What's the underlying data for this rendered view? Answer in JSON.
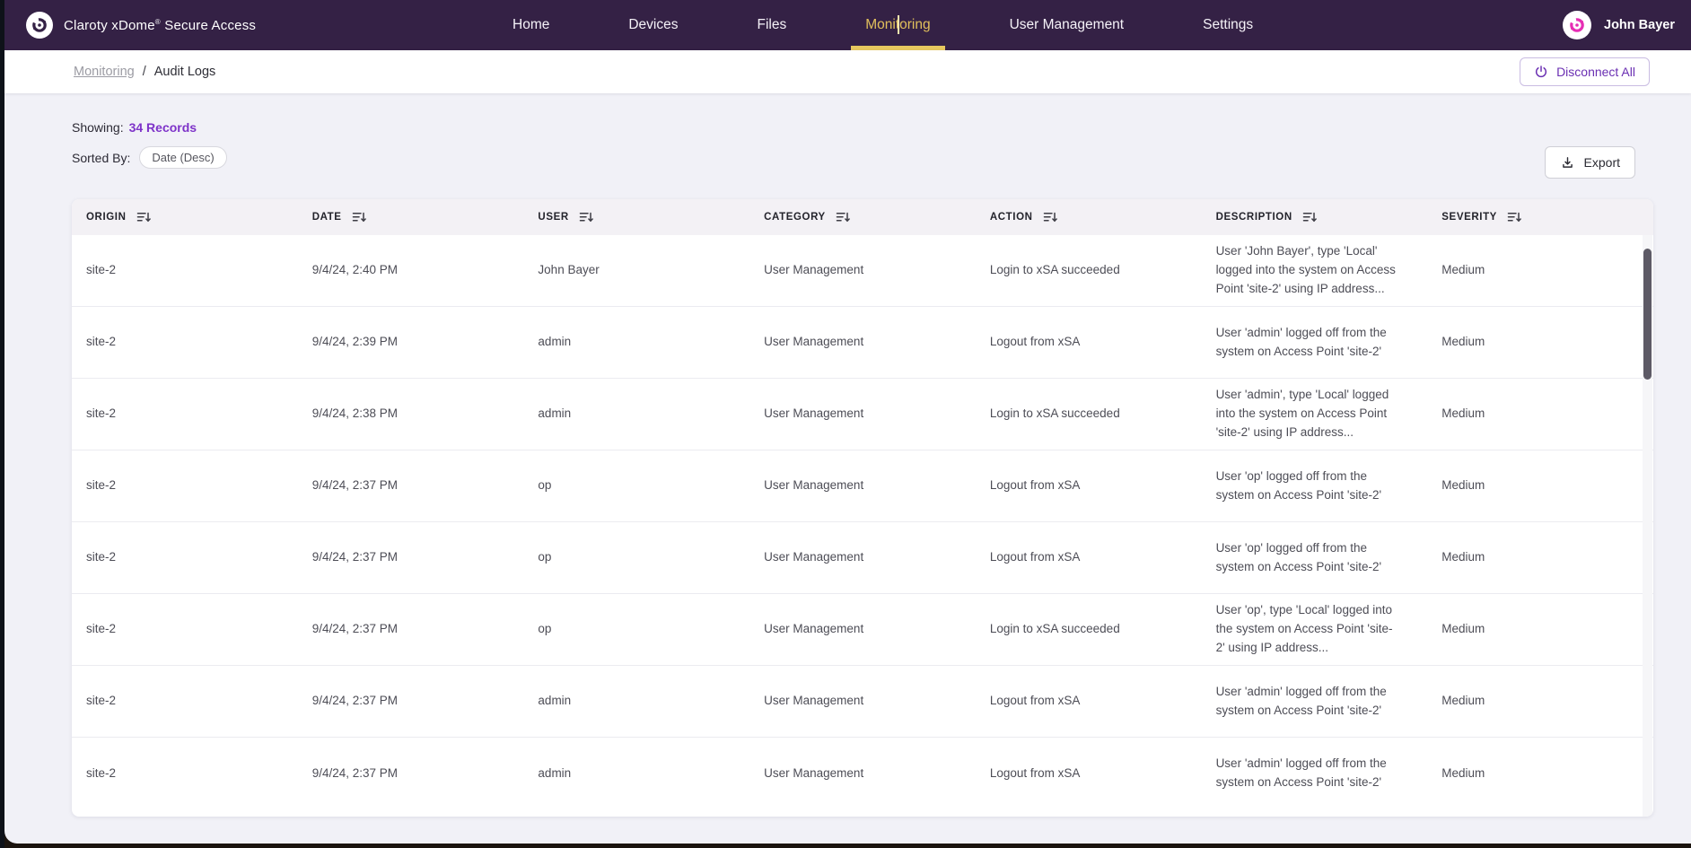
{
  "colors": {
    "nav_bg": "#342145",
    "active_gold": "#E2C05C",
    "accent_purple": "#7E33C9",
    "button_purple": "#6A2FB2"
  },
  "nav": {
    "brand_name": "Claroty xDome",
    "brand_reg": "®",
    "brand_suffix": " Secure Access",
    "items": [
      {
        "label": "Home",
        "active": false
      },
      {
        "label": "Devices",
        "active": false
      },
      {
        "label": "Files",
        "active": false
      },
      {
        "label": "Monitoring",
        "active": true
      },
      {
        "label": "User Management",
        "active": false
      },
      {
        "label": "Settings",
        "active": false
      }
    ],
    "user_name": "John Bayer"
  },
  "breadcrumb": {
    "parent": "Monitoring",
    "separator": "/",
    "current": "Audit Logs"
  },
  "actions": {
    "disconnect_all": "Disconnect All",
    "export": "Export"
  },
  "summary": {
    "showing_label": "Showing:",
    "records_count": "34 Records",
    "sorted_label": "Sorted By:",
    "sort_chip": "Date (Desc)"
  },
  "table": {
    "columns": [
      "ORIGIN",
      "DATE",
      "USER",
      "CATEGORY",
      "ACTION",
      "DESCRIPTION",
      "SEVERITY"
    ],
    "column_keys": [
      "origin",
      "date",
      "user",
      "category",
      "action",
      "description",
      "severity"
    ],
    "rows": [
      {
        "origin": "site-2",
        "date": "9/4/24, 2:40 PM",
        "user": "John Bayer",
        "category": "User Management",
        "action": "Login to xSA succeeded",
        "description": "User 'John Bayer', type 'Local' logged into the system on Access Point 'site-2' using IP address...",
        "severity": "Medium"
      },
      {
        "origin": "site-2",
        "date": "9/4/24, 2:39 PM",
        "user": "admin",
        "category": "User Management",
        "action": "Logout from xSA",
        "description": "User 'admin' logged off from the system on Access Point 'site-2'",
        "severity": "Medium"
      },
      {
        "origin": "site-2",
        "date": "9/4/24, 2:38 PM",
        "user": "admin",
        "category": "User Management",
        "action": "Login to xSA succeeded",
        "description": "User 'admin', type 'Local' logged into the system on Access Point 'site-2' using IP address...",
        "severity": "Medium"
      },
      {
        "origin": "site-2",
        "date": "9/4/24, 2:37 PM",
        "user": "op",
        "category": "User Management",
        "action": "Logout from xSA",
        "description": "User 'op' logged off from the system on Access Point 'site-2'",
        "severity": "Medium"
      },
      {
        "origin": "site-2",
        "date": "9/4/24, 2:37 PM",
        "user": "op",
        "category": "User Management",
        "action": "Logout from xSA",
        "description": "User 'op' logged off from the system on Access Point 'site-2'",
        "severity": "Medium"
      },
      {
        "origin": "site-2",
        "date": "9/4/24, 2:37 PM",
        "user": "op",
        "category": "User Management",
        "action": "Login to xSA succeeded",
        "description": "User 'op', type 'Local' logged into the system on Access Point 'site-2' using IP address...",
        "severity": "Medium"
      },
      {
        "origin": "site-2",
        "date": "9/4/24, 2:37 PM",
        "user": "admin",
        "category": "User Management",
        "action": "Logout from xSA",
        "description": "User 'admin' logged off from the system on Access Point 'site-2'",
        "severity": "Medium"
      },
      {
        "origin": "site-2",
        "date": "9/4/24, 2:37 PM",
        "user": "admin",
        "category": "User Management",
        "action": "Logout from xSA",
        "description": "User 'admin' logged off from the system on Access Point 'site-2'",
        "severity": "Medium"
      }
    ]
  }
}
